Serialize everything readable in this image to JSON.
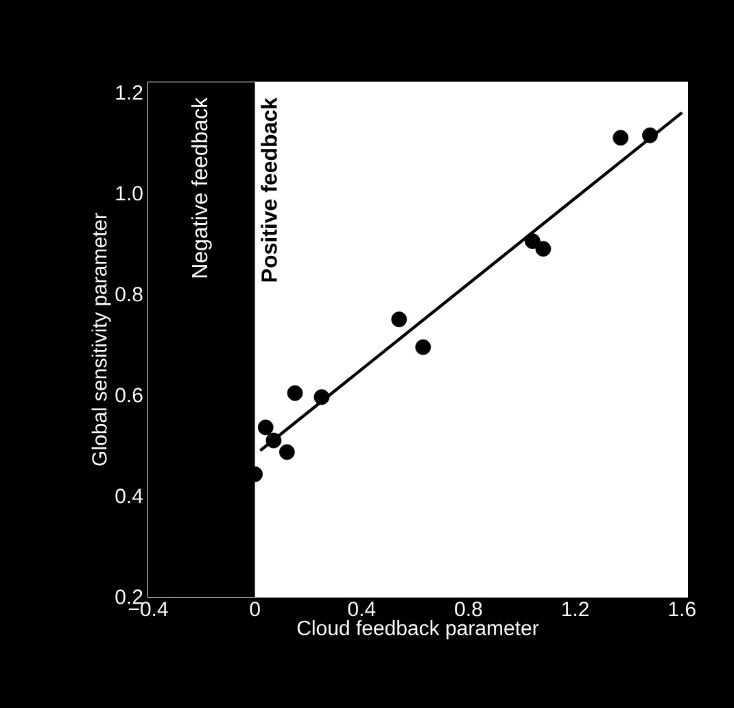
{
  "chart_data": {
    "type": "scatter",
    "xlabel": "Cloud feedback parameter",
    "ylabel": "Global sensitivity parameter",
    "xlim": [
      -0.4,
      1.62
    ],
    "ylim": [
      0.2,
      1.22
    ],
    "xticks": [
      {
        "value": -0.4,
        "label": "−0.4"
      },
      0,
      0.4,
      0.8,
      1.2,
      1.6
    ],
    "marker": "circle",
    "yticks": [
      0.2,
      0.4,
      0.6,
      0.8,
      {
        "value": 1.0,
        "label": "1.0"
      },
      1.2
    ],
    "series": [
      {
        "color": "#000000",
        "x": [
          0.0,
          0.04,
          0.07,
          0.12,
          0.15,
          0.25,
          0.54,
          0.63,
          1.04,
          1.08,
          1.37,
          1.48
        ],
        "values": [
          0.443,
          0.536,
          0.51,
          0.487,
          0.604,
          0.596,
          0.75,
          0.695,
          0.905,
          0.89,
          1.11,
          1.115
        ]
      },
      {
        "type": "line",
        "marker": "none",
        "color": "#000000",
        "x": [
          0.02,
          1.6
        ],
        "values": [
          0.49,
          1.16
        ]
      }
    ],
    "bands": [
      {
        "axis": "x",
        "from": -0.4,
        "to": 0,
        "label": "Negative feedback",
        "color": "#000000"
      }
    ],
    "annotations": [
      "Positive feedback"
    ]
  }
}
